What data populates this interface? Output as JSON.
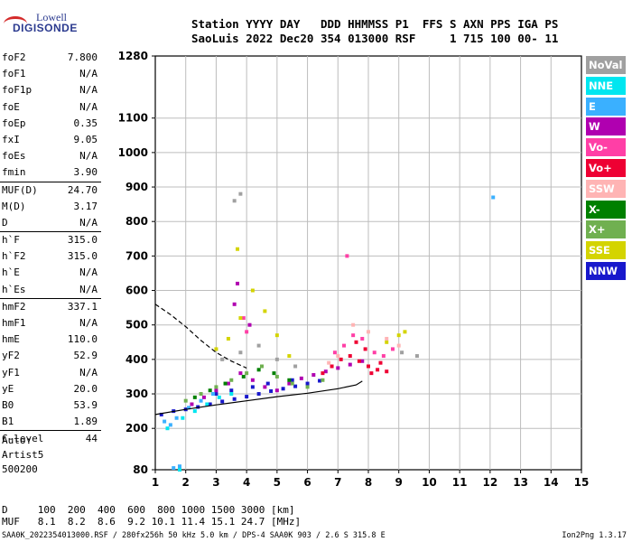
{
  "logo": {
    "line1": "Lowell",
    "line2": "DIGISONDE"
  },
  "header": {
    "row1": "Station YYYY DAY   DDD HHMMSS P1  FFS S AXN PPS IGA PS",
    "row2": "SaoLuis 2022 Dec20 354 013000 RSF     1 715 100 00- 11"
  },
  "params": [
    {
      "k": "foF2",
      "v": "7.800"
    },
    {
      "k": "foF1",
      "v": "N/A"
    },
    {
      "k": "foF1p",
      "v": "N/A"
    },
    {
      "k": "foE",
      "v": "N/A"
    },
    {
      "k": "foEp",
      "v": "0.35"
    },
    {
      "k": "fxI",
      "v": "9.05"
    },
    {
      "k": "foEs",
      "v": "N/A"
    },
    {
      "k": "fmin",
      "v": "3.90"
    },
    {
      "k": "MUF(D)",
      "v": "24.70"
    },
    {
      "k": "M(D)",
      "v": "3.17"
    },
    {
      "k": "D",
      "v": "N/A"
    },
    {
      "k": "h`F",
      "v": "315.0"
    },
    {
      "k": "h`F2",
      "v": "315.0"
    },
    {
      "k": "h`E",
      "v": "N/A"
    },
    {
      "k": "h`Es",
      "v": "N/A"
    },
    {
      "k": "hmF2",
      "v": "337.1"
    },
    {
      "k": "hmF1",
      "v": "N/A"
    },
    {
      "k": "hmE",
      "v": "110.0"
    },
    {
      "k": "yF2",
      "v": "52.9"
    },
    {
      "k": "yF1",
      "v": "N/A"
    },
    {
      "k": "yE",
      "v": "20.0"
    },
    {
      "k": "B0",
      "v": "53.9"
    },
    {
      "k": "B1",
      "v": "1.89"
    },
    {
      "k": "C-level",
      "v": "44"
    }
  ],
  "auto": {
    "line1": "Auto:",
    "line2": "Artist5",
    "line3": "500200"
  },
  "muf_table": {
    "row_d": "D     100  200  400  600  800 1000 1500 3000 [km]",
    "row_muf": "MUF   8.1  8.2  8.6  9.2 10.1 11.4 15.1 24.7 [MHz]"
  },
  "footer": {
    "left": "SAA0K_2022354013000.RSF / 280fx256h 50 kHz 5.0 km / DPS-4 SAA0K 903 / 2.6 S 315.8 E",
    "right": "Ion2Png 1.3.17"
  },
  "legend": [
    {
      "label": "NoVal",
      "color": "#a0a0a0"
    },
    {
      "label": "NNE",
      "color": "#00e6f0"
    },
    {
      "label": "E",
      "color": "#3ab0ff"
    },
    {
      "label": "W",
      "color": "#b000b0"
    },
    {
      "label": "Vo-",
      "color": "#ff3fa6"
    },
    {
      "label": "Vo+",
      "color": "#ee0033"
    },
    {
      "label": "SSW",
      "color": "#ffb4b4"
    },
    {
      "label": "X-",
      "color": "#008000"
    },
    {
      "label": "X+",
      "color": "#70b050"
    },
    {
      "label": "SSE",
      "color": "#d4d400"
    },
    {
      "label": "NNW",
      "color": "#1818cc"
    }
  ],
  "chart_data": {
    "type": "scatter",
    "xlabel": "",
    "ylabel": "",
    "x_ticks": [
      1,
      2,
      3,
      4,
      5,
      6,
      7,
      8,
      9,
      10,
      11,
      12,
      13,
      14,
      15
    ],
    "y_ticks": [
      80,
      200,
      300,
      400,
      500,
      600,
      700,
      800,
      900,
      1000,
      1100,
      1280
    ],
    "xlim": [
      1,
      15
    ],
    "ylim": [
      80,
      1280
    ],
    "grid": true,
    "series": [
      {
        "name": "NNW",
        "color": "#1818cc",
        "points": [
          [
            1.2,
            240
          ],
          [
            1.6,
            250
          ],
          [
            2.0,
            255
          ],
          [
            2.4,
            262
          ],
          [
            2.8,
            270
          ],
          [
            3.2,
            278
          ],
          [
            3.6,
            285
          ],
          [
            4.0,
            292
          ],
          [
            4.4,
            300
          ],
          [
            4.8,
            308
          ],
          [
            5.2,
            315
          ],
          [
            5.6,
            322
          ],
          [
            6.0,
            330
          ],
          [
            6.4,
            338
          ],
          [
            3.0,
            300
          ],
          [
            3.5,
            310
          ],
          [
            4.2,
            320
          ],
          [
            4.7,
            330
          ],
          [
            5.5,
            340
          ]
        ]
      },
      {
        "name": "W",
        "color": "#b000b0",
        "points": [
          [
            2.2,
            270
          ],
          [
            2.6,
            290
          ],
          [
            3.0,
            310
          ],
          [
            3.4,
            330
          ],
          [
            3.8,
            360
          ],
          [
            4.2,
            340
          ],
          [
            4.6,
            320
          ],
          [
            5.0,
            310
          ],
          [
            5.4,
            330
          ],
          [
            5.8,
            345
          ],
          [
            6.2,
            355
          ],
          [
            6.6,
            365
          ],
          [
            7.0,
            375
          ],
          [
            7.4,
            385
          ],
          [
            7.8,
            395
          ],
          [
            3.6,
            560
          ],
          [
            3.7,
            620
          ],
          [
            4.1,
            500
          ]
        ]
      },
      {
        "name": "Vo+",
        "color": "#ee0033",
        "points": [
          [
            6.5,
            360
          ],
          [
            6.8,
            380
          ],
          [
            7.1,
            400
          ],
          [
            7.4,
            410
          ],
          [
            7.7,
            395
          ],
          [
            8.0,
            380
          ],
          [
            8.3,
            370
          ],
          [
            8.6,
            365
          ],
          [
            7.9,
            430
          ],
          [
            7.6,
            450
          ],
          [
            8.1,
            360
          ],
          [
            8.4,
            390
          ]
        ]
      },
      {
        "name": "Vo-",
        "color": "#ff3fa6",
        "points": [
          [
            6.9,
            420
          ],
          [
            7.2,
            440
          ],
          [
            7.5,
            470
          ],
          [
            7.8,
            460
          ],
          [
            8.2,
            420
          ],
          [
            8.5,
            410
          ],
          [
            8.8,
            430
          ],
          [
            7.3,
            700
          ],
          [
            3.9,
            520
          ],
          [
            4.0,
            480
          ]
        ]
      },
      {
        "name": "SSE",
        "color": "#d4d400",
        "points": [
          [
            3.0,
            430
          ],
          [
            3.4,
            460
          ],
          [
            3.8,
            520
          ],
          [
            4.2,
            600
          ],
          [
            4.6,
            540
          ],
          [
            5.0,
            470
          ],
          [
            5.4,
            410
          ],
          [
            8.6,
            450
          ],
          [
            9.0,
            470
          ],
          [
            9.2,
            480
          ],
          [
            3.7,
            720
          ]
        ]
      },
      {
        "name": "X+",
        "color": "#70b050",
        "points": [
          [
            2.0,
            280
          ],
          [
            2.5,
            300
          ],
          [
            3.0,
            320
          ],
          [
            3.5,
            340
          ],
          [
            4.0,
            360
          ],
          [
            4.5,
            380
          ],
          [
            5.0,
            350
          ],
          [
            5.5,
            330
          ],
          [
            6.0,
            320
          ],
          [
            6.5,
            340
          ]
        ]
      },
      {
        "name": "X-",
        "color": "#008000",
        "points": [
          [
            2.3,
            290
          ],
          [
            2.8,
            310
          ],
          [
            3.3,
            330
          ],
          [
            3.9,
            350
          ],
          [
            4.4,
            370
          ],
          [
            4.9,
            360
          ],
          [
            5.4,
            340
          ]
        ]
      },
      {
        "name": "E",
        "color": "#3ab0ff",
        "points": [
          [
            1.3,
            220
          ],
          [
            1.5,
            210
          ],
          [
            1.7,
            230
          ],
          [
            2.1,
            260
          ],
          [
            2.5,
            280
          ],
          [
            2.9,
            300
          ],
          [
            1.6,
            85
          ],
          [
            1.8,
            90
          ],
          [
            12.1,
            870
          ]
        ]
      },
      {
        "name": "NNE",
        "color": "#00e6f0",
        "points": [
          [
            1.4,
            200
          ],
          [
            1.9,
            230
          ],
          [
            2.3,
            250
          ],
          [
            2.7,
            270
          ],
          [
            3.1,
            290
          ],
          [
            1.8,
            80
          ],
          [
            3.5,
            300
          ]
        ]
      },
      {
        "name": "SSW",
        "color": "#ffb4b4",
        "points": [
          [
            6.7,
            390
          ],
          [
            7.0,
            410
          ],
          [
            7.5,
            500
          ],
          [
            8.0,
            480
          ],
          [
            8.6,
            460
          ],
          [
            9.0,
            440
          ]
        ]
      },
      {
        "name": "NoVal",
        "color": "#a0a0a0",
        "points": [
          [
            3.2,
            400
          ],
          [
            3.8,
            420
          ],
          [
            4.4,
            440
          ],
          [
            5.0,
            400
          ],
          [
            5.6,
            380
          ],
          [
            9.1,
            420
          ],
          [
            9.6,
            410
          ],
          [
            3.6,
            860
          ],
          [
            3.8,
            880
          ]
        ]
      }
    ],
    "curves": [
      {
        "name": "profile",
        "color": "#000000",
        "style": "solid",
        "points": [
          [
            1.0,
            240
          ],
          [
            2.0,
            255
          ],
          [
            3.0,
            268
          ],
          [
            4.0,
            280
          ],
          [
            5.0,
            292
          ],
          [
            6.0,
            302
          ],
          [
            7.0,
            315
          ],
          [
            7.6,
            326
          ],
          [
            7.8,
            337
          ]
        ]
      },
      {
        "name": "extrapolation",
        "color": "#000000",
        "style": "dashed",
        "points": [
          [
            1.0,
            560
          ],
          [
            1.5,
            530
          ],
          [
            2.0,
            495
          ],
          [
            2.5,
            455
          ],
          [
            3.0,
            420
          ],
          [
            3.5,
            395
          ],
          [
            4.0,
            375
          ]
        ]
      }
    ]
  }
}
